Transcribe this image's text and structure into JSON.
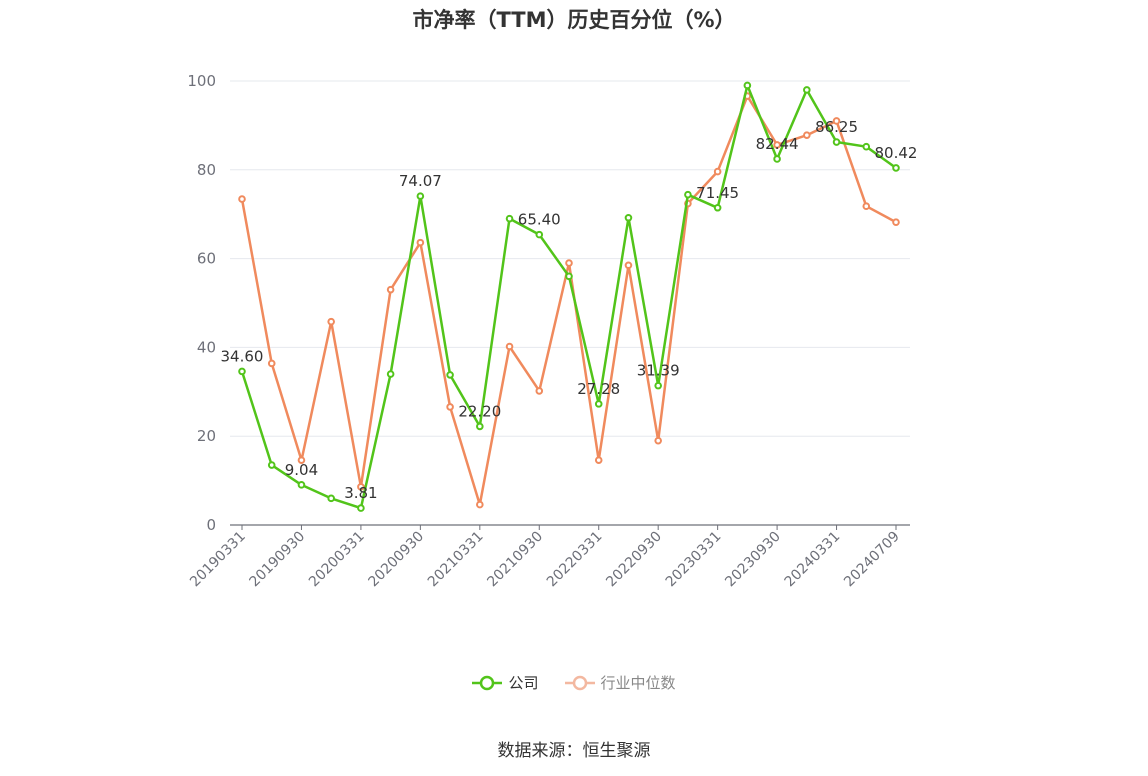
{
  "title": "市净率（TTM）历史百分位（%）",
  "source": "数据来源：恒生聚源",
  "colors": {
    "company": "#52c41a",
    "industry": "#f08a5d",
    "axis": "#6e7079",
    "grid": "#e6e8ee",
    "label": "#333333",
    "legend_inactive": "#f3b8a0"
  },
  "chart_data": {
    "type": "line",
    "ylim": [
      0,
      100
    ],
    "yticks": [
      0,
      20,
      40,
      60,
      80,
      100
    ],
    "x": [
      "20190331",
      "20190630",
      "20190930",
      "20191231",
      "20200331",
      "20200630",
      "20200930",
      "20201231",
      "20210331",
      "20210630",
      "20210930",
      "20211231",
      "20220331",
      "20220630",
      "20220930",
      "20221231",
      "20230331",
      "20230630",
      "20230930",
      "20231231",
      "20240331",
      "20240630",
      "20240709"
    ],
    "xticks": [
      "20190331",
      "20190930",
      "20200331",
      "20200930",
      "20210331",
      "20210930",
      "20220331",
      "20220930",
      "20230331",
      "20230930",
      "20240331",
      "20240709"
    ],
    "grid": true,
    "legend_position": "bottom",
    "series": [
      {
        "name": "公司",
        "key": "company",
        "values": [
          34.6,
          13.5,
          9.04,
          6.0,
          3.81,
          34.0,
          74.07,
          33.8,
          22.2,
          69.0,
          65.4,
          56.0,
          27.28,
          69.2,
          31.39,
          74.4,
          71.45,
          99.0,
          82.44,
          98.0,
          86.25,
          85.2,
          80.42
        ]
      },
      {
        "name": "行业中位数",
        "key": "industry",
        "values": [
          73.4,
          36.4,
          14.6,
          45.8,
          8.6,
          53.0,
          63.6,
          26.6,
          4.6,
          40.2,
          30.2,
          59.0,
          14.6,
          58.5,
          19.0,
          72.4,
          79.6,
          96.6,
          85.6,
          87.8,
          91.0,
          71.8,
          68.2
        ]
      }
    ],
    "data_labels": [
      {
        "index": 0,
        "text": "34.60"
      },
      {
        "index": 2,
        "text": "9.04"
      },
      {
        "index": 4,
        "text": "3.81"
      },
      {
        "index": 6,
        "text": "74.07"
      },
      {
        "index": 8,
        "text": "22.20"
      },
      {
        "index": 10,
        "text": "65.40"
      },
      {
        "index": 12,
        "text": "27.28"
      },
      {
        "index": 14,
        "text": "31.39"
      },
      {
        "index": 16,
        "text": "71.45"
      },
      {
        "index": 18,
        "text": "82.44"
      },
      {
        "index": 20,
        "text": "86.25"
      },
      {
        "index": 22,
        "text": "80.42"
      }
    ]
  }
}
